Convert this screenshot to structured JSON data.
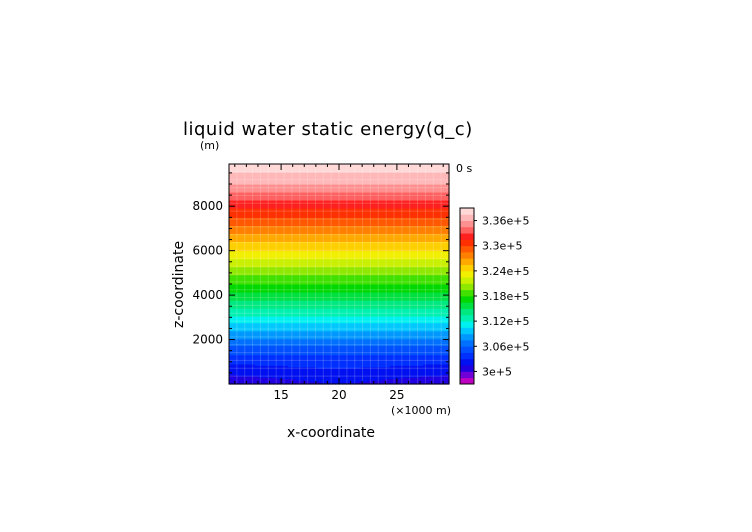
{
  "chart_data": {
    "type": "heatmap",
    "title": "liquid water static energy(q_c)",
    "y_unit_label": "(m)",
    "ylabel": "z-coordinate",
    "xlabel": "x-coordinate",
    "x_unit_label": "(×1000 m)",
    "time_label": "0 s",
    "x_ticks": [
      15,
      20,
      25
    ],
    "y_ticks": [
      2000,
      4000,
      6000,
      8000
    ],
    "xlim": [
      10.5,
      29.5
    ],
    "ylim": [
      0,
      9900
    ],
    "colorbar": {
      "min": 297000,
      "max": 339000,
      "step": 1500,
      "tick_values": [
        300000,
        306000,
        312000,
        318000,
        324000,
        330000,
        336000
      ],
      "tick_labels": [
        "3e+5",
        "3.06e+5",
        "3.12e+5",
        "3.18e+5",
        "3.24e+5",
        "3.3e+5",
        "3.36e+5"
      ],
      "colors": [
        "#c000c0",
        "#7000d8",
        "#2000e0",
        "#0010f0",
        "#0030ff",
        "#0050ff",
        "#0070ff",
        "#0098ff",
        "#00c8ff",
        "#00f0f0",
        "#00f0b0",
        "#00e880",
        "#00e040",
        "#00d800",
        "#40e000",
        "#90e800",
        "#c8f000",
        "#f0f000",
        "#ffd000",
        "#ffa800",
        "#ff8000",
        "#ff5800",
        "#ff3000",
        "#ff2020",
        "#ff6060",
        "#ff9090",
        "#ffb8b8",
        "#ffd8d8"
      ]
    },
    "field": {
      "description_rows": "z levels (m) vs energy value, horizontally near-uniform",
      "z": [
        0,
        500,
        1000,
        1500,
        2000,
        2500,
        3000,
        3500,
        4000,
        4500,
        5000,
        5500,
        6000,
        6500,
        7000,
        7500,
        8000,
        8500,
        9000,
        9500,
        9900
      ],
      "value": [
        300500,
        301800,
        303400,
        305200,
        307400,
        309600,
        311800,
        314000,
        316000,
        318000,
        320000,
        322000,
        324000,
        326000,
        328000,
        330000,
        332000,
        334000,
        336000,
        337500,
        338500
      ],
      "surface_dip": {
        "x": 20,
        "z_top": 700,
        "z_edge": 1100
      }
    }
  }
}
